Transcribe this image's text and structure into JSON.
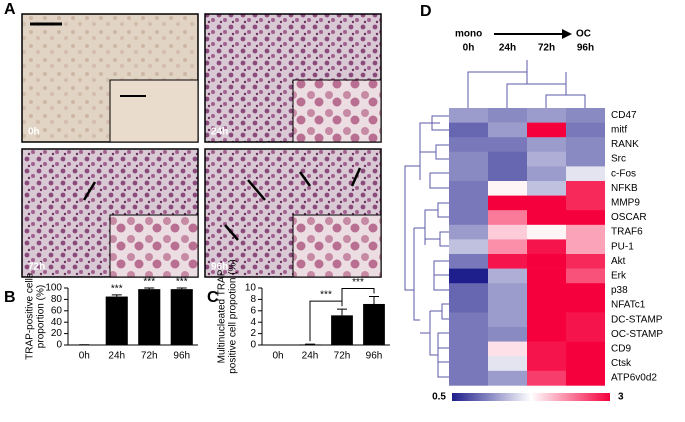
{
  "panel_labels": [
    "A",
    "B",
    "C",
    "D"
  ],
  "micrographs": [
    "0h",
    "24h",
    "72h",
    "96h"
  ],
  "chart_data": [
    {
      "type": "bar",
      "ylabel": [
        "TRAP-positive cells",
        "proportion (%)"
      ],
      "categories": [
        "0h",
        "24h",
        "72h",
        "96h"
      ],
      "values": [
        0.5,
        85,
        98,
        98
      ],
      "errors": [
        0,
        3,
        2,
        2
      ],
      "significance": [
        null,
        "***",
        "***",
        "***"
      ],
      "color": "#000000",
      "ylim": [
        0,
        100
      ],
      "yticks": [
        0,
        20,
        40,
        60,
        80,
        100
      ]
    },
    {
      "type": "bar",
      "ylabel": [
        "Multinucleated TRAP",
        "positive cell propotion (%)"
      ],
      "categories": [
        "0h",
        "24h",
        "72h",
        "96h"
      ],
      "values": [
        0,
        0.1,
        5.2,
        7.2
      ],
      "errors": [
        0,
        0.05,
        1.1,
        1.3
      ],
      "comparisons": [
        {
          "between": [
            "24h",
            "72h"
          ],
          "label": "***"
        },
        {
          "between": [
            "72h",
            "96h"
          ],
          "label": "***"
        }
      ],
      "color": "#000000",
      "ylim": [
        0,
        10
      ],
      "yticks": [
        0,
        2,
        4,
        6,
        8,
        10
      ]
    },
    {
      "type": "heatmap",
      "start_label": "mono",
      "end_label": "OC",
      "columns": [
        "0h",
        "24h",
        "72h",
        "96h"
      ],
      "rows": [
        "CD47",
        "mitf",
        "RANK",
        "Src",
        "c-Fos",
        "NFKB",
        "MMP9",
        "OSCAR",
        "TRAF6",
        "PU-1",
        "Akt",
        "Erk",
        "p38",
        "NFATc1",
        "DC-STAMP",
        "OC-STAMP",
        "CD9",
        "Ctsk",
        "ATP6v0d2"
      ],
      "values": [
        [
          1.2,
          1.1,
          1.2,
          1.1
        ],
        [
          0.9,
          1.2,
          3,
          1.0
        ],
        [
          1.0,
          1.0,
          1.2,
          1.1
        ],
        [
          1.1,
          0.9,
          1.3,
          1.1
        ],
        [
          1.1,
          0.9,
          1.2,
          1.6
        ],
        [
          1.0,
          1.8,
          1.4,
          2.8
        ],
        [
          1.0,
          3,
          3,
          2.8
        ],
        [
          1.0,
          2.4,
          3,
          3
        ],
        [
          1.2,
          2.0,
          1.8,
          2.2
        ],
        [
          1.4,
          2.3,
          2.9,
          2.2
        ],
        [
          1.0,
          2.9,
          3,
          2.8
        ],
        [
          0.5,
          1.3,
          3,
          2.6
        ],
        [
          0.9,
          1.2,
          3,
          3
        ],
        [
          0.9,
          1.2,
          3,
          3
        ],
        [
          1.0,
          1.2,
          3,
          2.9
        ],
        [
          1.0,
          1.1,
          3,
          2.9
        ],
        [
          1.0,
          1.9,
          2.9,
          3
        ],
        [
          1.0,
          1.6,
          2.9,
          3
        ],
        [
          1.0,
          1.2,
          2.7,
          3
        ]
      ],
      "clim": [
        0.5,
        3
      ],
      "colors": [
        "#1e1e8c",
        "#ffffff",
        "#f5003c"
      ]
    }
  ]
}
